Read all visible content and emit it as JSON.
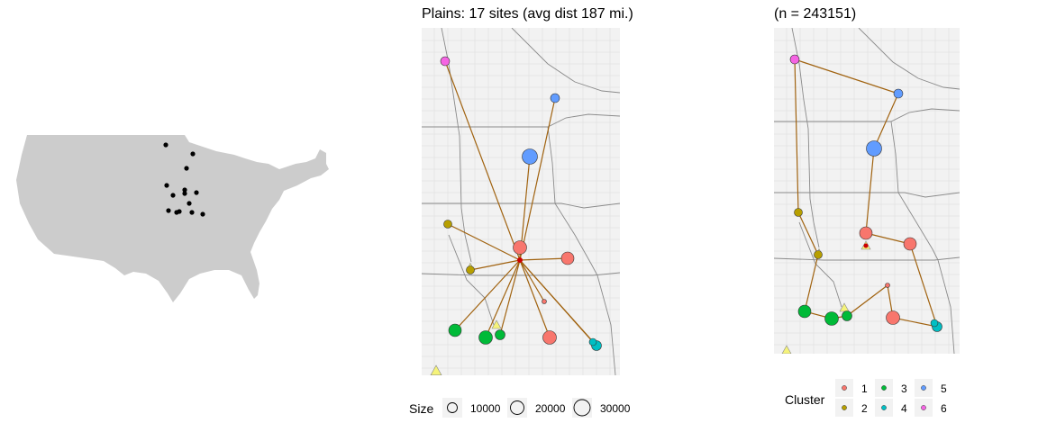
{
  "center": {
    "title": "Plains: 17 sites (avg dist 187 mi.)"
  },
  "right": {
    "title": "(n = 243151)"
  },
  "size_legend": {
    "title": "Size",
    "items": [
      "10000",
      "20000",
      "30000"
    ]
  },
  "cluster_legend": {
    "title": "Cluster",
    "items": [
      "1",
      "2",
      "3",
      "4",
      "5",
      "6"
    ],
    "colors": [
      "#f8766d",
      "#b79f00",
      "#00ba38",
      "#00bfc4",
      "#619cff",
      "#f564e3"
    ]
  },
  "colors": {
    "land": "#cccccc",
    "map_bg": "#f2f2f2",
    "route": "#a0620f",
    "depot": "#cc0000",
    "triangle": "#f5f37a"
  }
}
